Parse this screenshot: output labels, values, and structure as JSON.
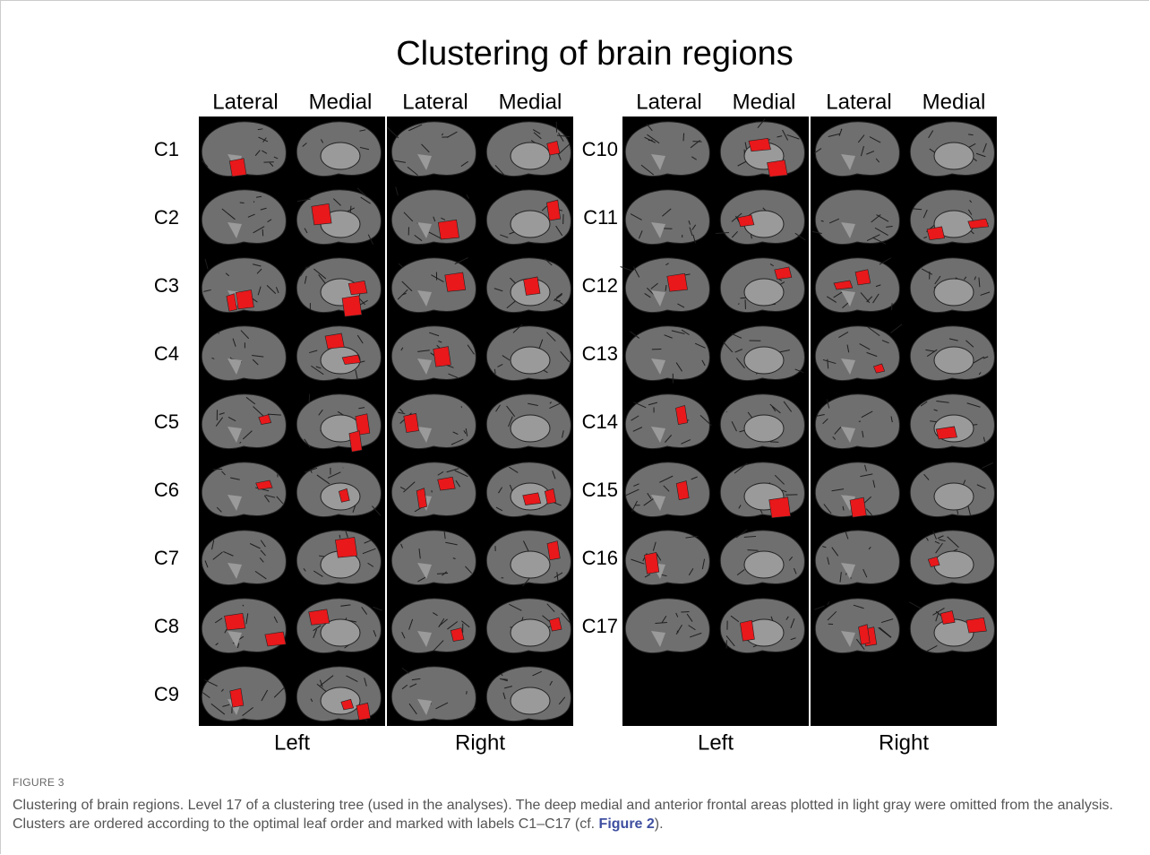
{
  "figure": {
    "title": "Clustering of brain regions",
    "panels": [
      {
        "columns": [
          "Lateral",
          "Medial",
          "Lateral",
          "Medial"
        ],
        "hemispheres": [
          "Left",
          "Right"
        ],
        "rows": [
          "C1",
          "C2",
          "C3",
          "C4",
          "C5",
          "C6",
          "C7",
          "C8",
          "C9"
        ]
      },
      {
        "columns": [
          "Lateral",
          "Medial",
          "Lateral",
          "Medial"
        ],
        "hemispheres": [
          "Left",
          "Right"
        ],
        "rows": [
          "C10",
          "C11",
          "C12",
          "C13",
          "C14",
          "C15",
          "C16",
          "C17"
        ]
      }
    ],
    "caption_label": "FIGURE 3",
    "caption": "Clustering of brain regions. Level 17 of a clustering tree (used in the analyses). The deep medial and anterior frontal areas plotted in light gray were omitted from the analysis. Clusters are ordered according to the optimal leaf order and marked with labels C1–C17 (cf. ",
    "caption_link": "Figure 2",
    "caption_end": ")."
  }
}
